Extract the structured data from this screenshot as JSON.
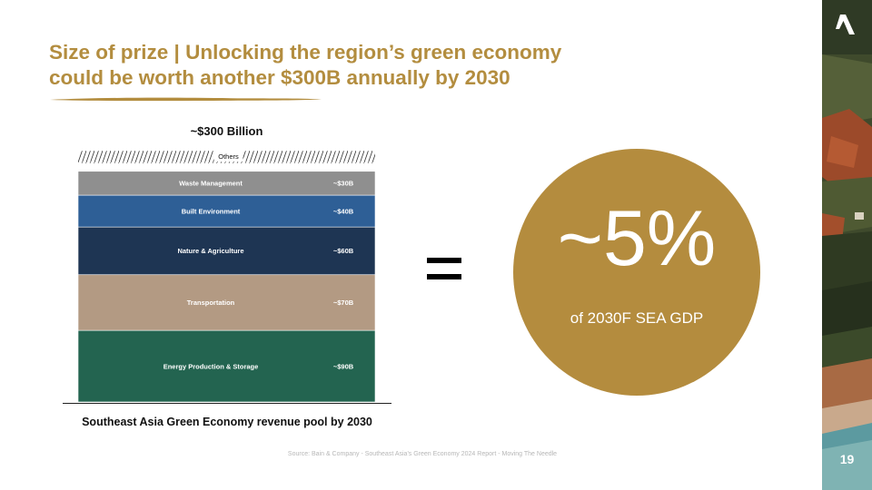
{
  "slide": {
    "title_line1": "Size of prize | Unlocking the region’s green economy",
    "title_line2": "could be worth another $300B annually by 2030",
    "equals_sign": "=",
    "callout": {
      "value": "~5%",
      "label": "of 2030F SEA GDP",
      "color": "#b48c3e"
    },
    "source": "Source: Bain & Company - Southeast Asia's Green Economy 2024 Report - Moving The Needle",
    "page_number": "19",
    "accent_color": "#b38d3f",
    "logo_icon": "brand-a-logo-icon"
  },
  "chart_data": {
    "type": "bar",
    "stacked": true,
    "title": "~$300 Billion",
    "xlabel": "Southeast Asia Green Economy revenue pool by 2030",
    "ylabel": "",
    "ylim": [
      0,
      300
    ],
    "hatched_segment": "Others",
    "series": [
      {
        "name": "Energy Production & Storage",
        "value": 90,
        "value_label": "~$90B",
        "color": "#236450"
      },
      {
        "name": "Transportation",
        "value": 70,
        "value_label": "~$70B",
        "color": "#b39a83"
      },
      {
        "name": "Nature & Agriculture",
        "value": 60,
        "value_label": "~$60B",
        "color": "#1e3553"
      },
      {
        "name": "Built Environment",
        "value": 40,
        "value_label": "~$40B",
        "color": "#2e5f96"
      },
      {
        "name": "Waste Management",
        "value": 30,
        "value_label": "~$30B",
        "color": "#8f8f8f"
      },
      {
        "name": "Others",
        "value": null,
        "value_label": "",
        "color": "#ffffff"
      }
    ]
  }
}
